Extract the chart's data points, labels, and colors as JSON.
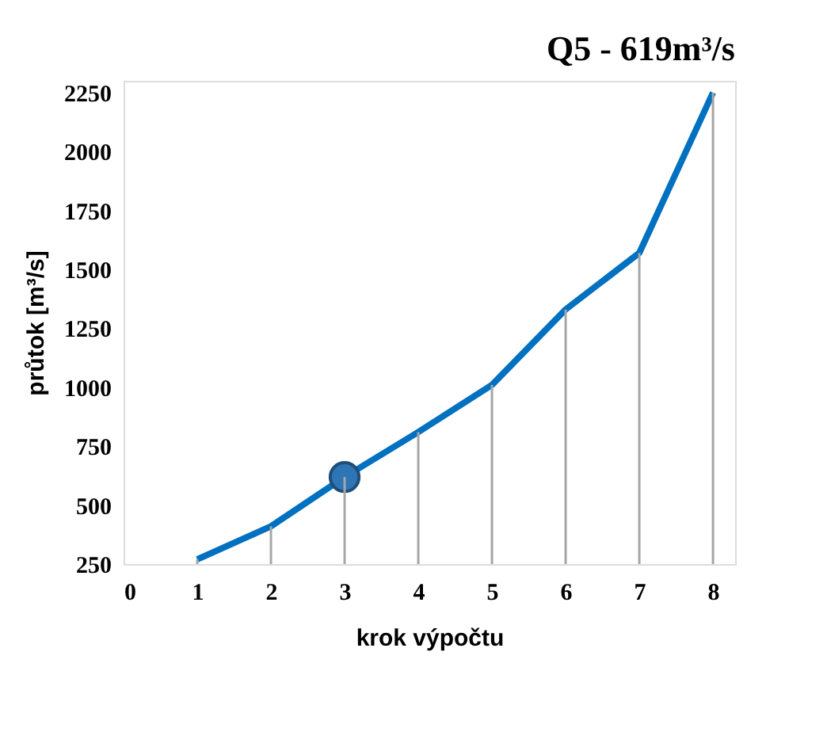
{
  "chart_data": {
    "type": "line",
    "title": "Q5 - 619m³/s",
    "xlabel": "krok výpočtu",
    "ylabel": "průtok [m³/s]",
    "x": [
      1,
      2,
      3,
      4,
      5,
      6,
      7,
      8
    ],
    "series": [
      {
        "type": "bar",
        "color": "#a6a6a6",
        "values": [
          270,
          410,
          619,
          810,
          1010,
          1330,
          1570,
          2250
        ]
      },
      {
        "marker": "none",
        "color": "#0070c0",
        "values": [
          270,
          410,
          619,
          810,
          1010,
          1330,
          1570,
          2250
        ]
      },
      {
        "type": "scatter",
        "marker": "circle",
        "color": "#2e75b6",
        "x": [
          3
        ],
        "values": [
          619
        ]
      }
    ],
    "xlim": [
      0,
      8.3
    ],
    "xticks": [
      0,
      1,
      2,
      3,
      4,
      5,
      6,
      7,
      8
    ],
    "ylim": [
      250,
      2300
    ],
    "yticks": [
      250,
      500,
      750,
      1000,
      1250,
      1500,
      1750,
      2000,
      2250
    ],
    "grid": false,
    "line_style": "solid"
  }
}
